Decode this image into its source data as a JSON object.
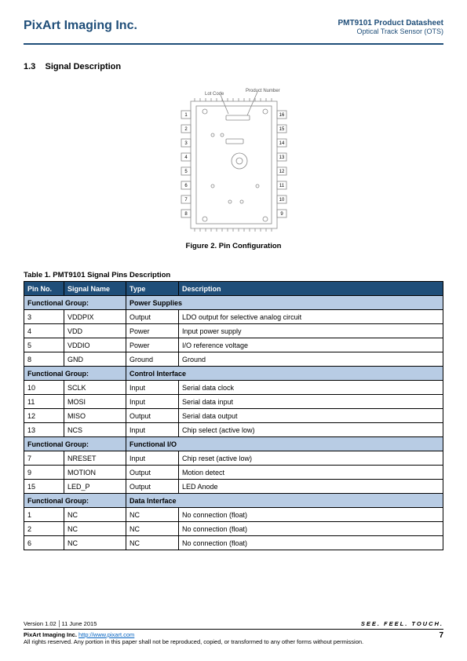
{
  "header": {
    "company": "PixArt Imaging Inc.",
    "product_title": "PMT9101 Product Datasheet",
    "product_sub": "Optical Track Sensor (OTS)"
  },
  "section": {
    "num": "1.3",
    "title": "Signal Description"
  },
  "figure": {
    "caption": "Figure 2. Pin Configuration",
    "label_lot": "Lot Code",
    "label_pn": "Product Number",
    "left_pins": [
      "1",
      "2",
      "3",
      "4",
      "5",
      "6",
      "7",
      "8"
    ],
    "right_pins": [
      "16",
      "15",
      "14",
      "13",
      "12",
      "11",
      "10",
      "9"
    ]
  },
  "table": {
    "caption": "Table 1. PMT9101 Signal Pins Description",
    "headers": [
      "Pin No.",
      "Signal Name",
      "Type",
      "Description"
    ],
    "group_label": "Functional Group:",
    "groups": [
      {
        "name": "Power Supplies",
        "rows": [
          {
            "pin": "3",
            "sig": "VDDPIX",
            "type": "Output",
            "desc": "LDO output for selective analog circuit"
          },
          {
            "pin": "4",
            "sig": "VDD",
            "type": "Power",
            "desc": "Input power supply"
          },
          {
            "pin": "5",
            "sig": "VDDIO",
            "type": "Power",
            "desc": "I/O reference voltage"
          },
          {
            "pin": "8",
            "sig": "GND",
            "type": "Ground",
            "desc": "Ground"
          }
        ]
      },
      {
        "name": "Control Interface",
        "rows": [
          {
            "pin": "10",
            "sig": "SCLK",
            "type": "Input",
            "desc": "Serial data clock"
          },
          {
            "pin": "11",
            "sig": "MOSI",
            "type": "Input",
            "desc": "Serial data input"
          },
          {
            "pin": "12",
            "sig": "MISO",
            "type": "Output",
            "desc": "Serial data output"
          },
          {
            "pin": "13",
            "sig": "NCS",
            "type": "Input",
            "desc": "Chip select (active low)"
          }
        ]
      },
      {
        "name": "Functional I/O",
        "rows": [
          {
            "pin": "7",
            "sig": "NRESET",
            "type": "Input",
            "desc": "Chip reset (active low)"
          },
          {
            "pin": "9",
            "sig": "MOTION",
            "type": "Output",
            "desc": "Motion detect"
          },
          {
            "pin": "15",
            "sig": "LED_P",
            "type": "Output",
            "desc": "LED Anode"
          }
        ]
      },
      {
        "name": "Data Interface",
        "rows": [
          {
            "pin": "1",
            "sig": "NC",
            "type": "NC",
            "desc": "No connection (float)"
          },
          {
            "pin": "2",
            "sig": "NC",
            "type": "NC",
            "desc": "No connection (float)"
          },
          {
            "pin": "6",
            "sig": "NC",
            "type": "NC",
            "desc": "No connection (float)"
          }
        ]
      }
    ]
  },
  "footer": {
    "version": "Version 1.02 │11 June 2015",
    "tagline": "SEE. FEEL. TOUCH.",
    "co": "PixArt Imaging Inc.",
    "url": "http://www.pixart.com",
    "rights": "All rights reserved. Any portion in this paper shall not be reproduced, copied, or transformed to any other forms without permission.",
    "page": "7"
  },
  "colors": {
    "brand": "#1f4e79",
    "group_bg": "#b8cce4",
    "link": "#0563c1"
  }
}
